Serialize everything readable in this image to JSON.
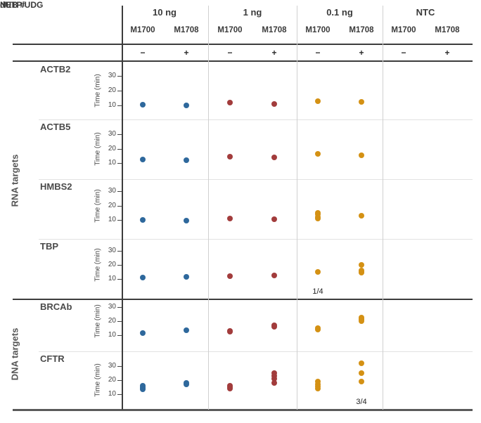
{
  "header": {
    "neb_label": "NEB #",
    "dutp_label": "dUTP/UDG",
    "groups": [
      {
        "label": "10 ng",
        "color": "#2e689c",
        "columns": [
          {
            "name": "M1700",
            "dutp": "−"
          },
          {
            "name": "M1708",
            "dutp": "+"
          }
        ]
      },
      {
        "label": "1 ng",
        "color": "#a23c3c",
        "columns": [
          {
            "name": "M1700",
            "dutp": "−"
          },
          {
            "name": "M1708",
            "dutp": "+"
          }
        ]
      },
      {
        "label": "0.1 ng",
        "color": "#d49114",
        "columns": [
          {
            "name": "M1700",
            "dutp": "−"
          },
          {
            "name": "M1708",
            "dutp": "+"
          }
        ]
      },
      {
        "label": "NTC",
        "color": null,
        "columns": [
          {
            "name": "M1700",
            "dutp": "−"
          },
          {
            "name": "M1708",
            "dutp": "+"
          }
        ]
      }
    ]
  },
  "side_labels": [
    {
      "label": "RNA targets"
    },
    {
      "label": "DNA targets"
    }
  ],
  "chart_data": {
    "type": "scatter",
    "ylabel": "Time (min)",
    "yticks": [
      10,
      20,
      30
    ],
    "ylim": [
      0,
      40
    ],
    "columns": [
      "10 ng M1700 (−)",
      "10 ng M1708 (+)",
      "1 ng M1700 (−)",
      "1 ng M1708 (+)",
      "0.1 ng M1700 (−)",
      "0.1 ng M1708 (+)",
      "NTC M1700 (−)",
      "NTC M1708 (+)"
    ],
    "series_colors": {
      "10 ng": "#2e689c",
      "1 ng": "#a23c3c",
      "0.1 ng": "#d49114",
      "NTC": null
    },
    "row_groups": [
      {
        "label": "RNA targets",
        "targets": [
          "ACTB2",
          "ACTB5",
          "HMBS2",
          "TBP"
        ]
      },
      {
        "label": "DNA targets",
        "targets": [
          "BRCAb",
          "CFTR"
        ]
      }
    ],
    "rows": [
      {
        "target": "ACTB2",
        "values": [
          [
            10.5
          ],
          [
            10
          ],
          [
            12
          ],
          [
            11
          ],
          [
            13
          ],
          [
            12.5
          ],
          [],
          []
        ],
        "annotations": []
      },
      {
        "target": "ACTB5",
        "values": [
          [
            12.5
          ],
          [
            12
          ],
          [
            14.5
          ],
          [
            14
          ],
          [
            16.5
          ],
          [
            15.5
          ],
          [],
          []
        ],
        "annotations": []
      },
      {
        "target": "HMBS2",
        "values": [
          [
            10
          ],
          [
            9.5
          ],
          [
            11
          ],
          [
            10.5
          ],
          [
            15,
            14,
            12,
            11
          ],
          [
            13
          ],
          [],
          []
        ],
        "annotations": []
      },
      {
        "target": "TBP",
        "values": [
          [
            11
          ],
          [
            11.5
          ],
          [
            12
          ],
          [
            12.5
          ],
          [
            15
          ],
          [
            20,
            16,
            15,
            14.5
          ],
          [],
          []
        ],
        "annotations": [
          {
            "col": 4,
            "label": "1/4"
          }
        ]
      },
      {
        "target": "BRCAb",
        "values": [
          [
            11.5
          ],
          [
            13.5
          ],
          [
            13,
            12.5
          ],
          [
            17,
            16
          ],
          [
            15,
            14
          ],
          [
            22.5,
            21.5,
            21,
            20
          ],
          [],
          []
        ],
        "annotations": []
      },
      {
        "target": "CFTR",
        "values": [
          [
            16,
            15,
            14,
            13.5
          ],
          [
            18,
            17
          ],
          [
            16,
            15,
            14
          ],
          [
            25,
            23,
            21,
            18
          ],
          [
            19,
            17,
            15.5,
            14
          ],
          [
            32,
            25,
            19
          ],
          [],
          []
        ],
        "annotations": [
          {
            "col": 5,
            "label": "3/4"
          }
        ]
      }
    ]
  }
}
